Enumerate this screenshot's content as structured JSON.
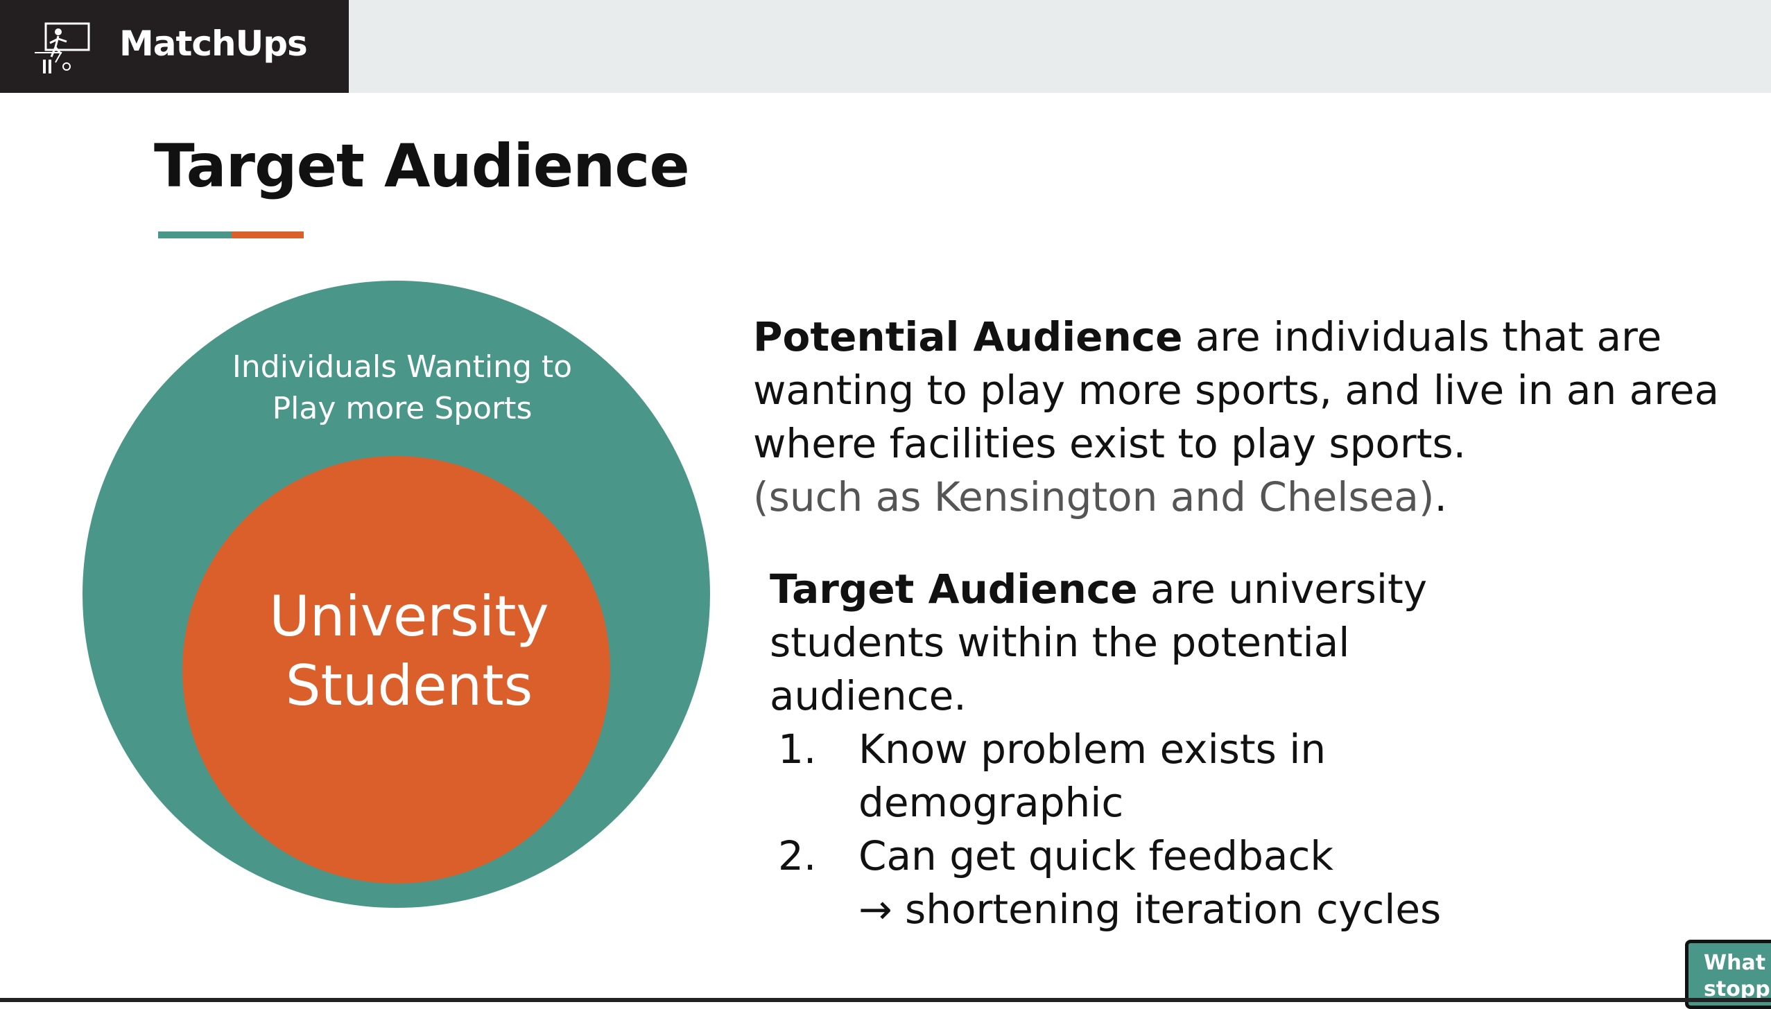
{
  "brand": {
    "name": "MatchUps",
    "logo_icon": "football-player-icon"
  },
  "slide": {
    "title": "Target Audience",
    "accent_colors": {
      "teal": "#4a978a",
      "orange": "#db5f2a"
    }
  },
  "diagram": {
    "outer_label_line1": "Individuals Wanting to",
    "outer_label_line2": "Play more Sports",
    "inner_label_line1": "University",
    "inner_label_line2": "Students"
  },
  "potential": {
    "bold": "Potential Audience",
    "rest": " are individuals that are wanting to play more sports, and live in an area where facilities exist to play sports.",
    "muted": "(such as Kensington and Chelsea)",
    "end": "."
  },
  "target": {
    "bold": "Target Audience",
    "rest": " are university students within the potential audience.",
    "items": [
      {
        "num": "1.",
        "text": "Know problem exists in demographic"
      },
      {
        "num": "2.",
        "text": "Can get quick feedback",
        "sub": "→ shortening iteration cycles"
      }
    ]
  },
  "popup": {
    "line1": "What i",
    "line2": "stoppi"
  }
}
